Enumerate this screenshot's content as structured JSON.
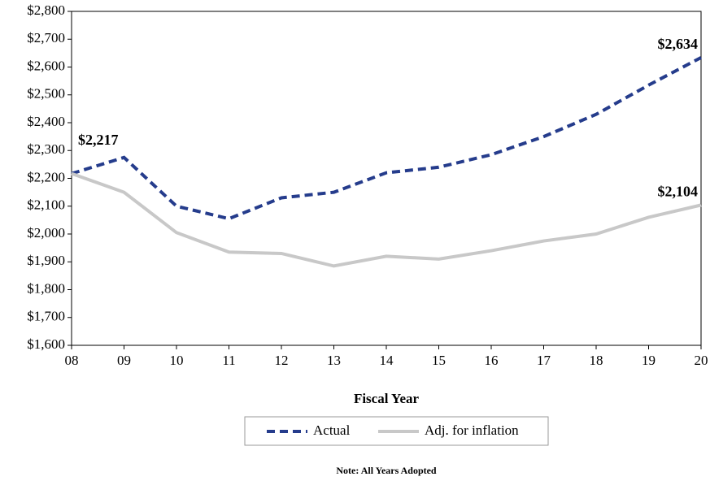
{
  "chart_data": {
    "type": "line",
    "categories": [
      "08",
      "09",
      "10",
      "11",
      "12",
      "13",
      "14",
      "15",
      "16",
      "17",
      "18",
      "19",
      "20"
    ],
    "series": [
      {
        "name": "Actual",
        "color": "#253c8c",
        "dashed": true,
        "values": [
          2217,
          2275,
          2100,
          2055,
          2130,
          2150,
          2220,
          2240,
          2285,
          2350,
          2430,
          2535,
          2634
        ],
        "value_labels": [
          "$2,217",
          null,
          null,
          null,
          null,
          null,
          null,
          null,
          null,
          null,
          null,
          null,
          "$2,634"
        ]
      },
      {
        "name": "Adj. for inflation",
        "color": "#c8c8c8",
        "dashed": false,
        "values": [
          2217,
          2150,
          2005,
          1935,
          1930,
          1885,
          1920,
          1910,
          1940,
          1975,
          2000,
          2060,
          2104
        ],
        "value_labels": [
          null,
          null,
          null,
          null,
          null,
          null,
          null,
          null,
          null,
          null,
          null,
          null,
          "$2,104"
        ]
      }
    ],
    "ylim": [
      1600,
      2800
    ],
    "yticks": [
      {
        "value": 1600,
        "label": "$1,600"
      },
      {
        "value": 1700,
        "label": "$1,700"
      },
      {
        "value": 1800,
        "label": "$1,800"
      },
      {
        "value": 1900,
        "label": "$1,900"
      },
      {
        "value": 2000,
        "label": "$2,000"
      },
      {
        "value": 2100,
        "label": "$2,100"
      },
      {
        "value": 2200,
        "label": "$2,200"
      },
      {
        "value": 2300,
        "label": "$2,300"
      },
      {
        "value": 2400,
        "label": "$2,400"
      },
      {
        "value": 2500,
        "label": "$2,500"
      },
      {
        "value": 2600,
        "label": "$2,600"
      },
      {
        "value": 2700,
        "label": "$2,700"
      },
      {
        "value": 2800,
        "label": "$2,800"
      }
    ],
    "xlabel": "Fiscal Year",
    "note": "Note: All Years Adopted",
    "legend": "bottom"
  }
}
